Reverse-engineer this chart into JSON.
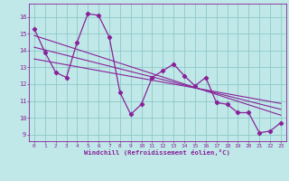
{
  "xlabel": "Windchill (Refroidissement éolien,°C)",
  "background_color": "#c0e8e8",
  "grid_color": "#90c8c8",
  "line_color": "#882299",
  "xlim": [
    -0.5,
    23.5
  ],
  "ylim": [
    8.6,
    16.8
  ],
  "yticks": [
    9,
    10,
    11,
    12,
    13,
    14,
    15,
    16
  ],
  "xticks": [
    0,
    1,
    2,
    3,
    4,
    5,
    6,
    7,
    8,
    9,
    10,
    11,
    12,
    13,
    14,
    15,
    16,
    17,
    18,
    19,
    20,
    21,
    22,
    23
  ],
  "main_x": [
    0,
    1,
    2,
    3,
    4,
    5,
    6,
    7,
    8,
    9,
    10,
    11,
    12,
    13,
    14,
    15,
    16,
    17,
    18,
    19,
    20,
    21,
    22,
    23
  ],
  "main_y": [
    15.3,
    13.9,
    12.7,
    12.4,
    14.5,
    16.2,
    16.1,
    14.8,
    11.5,
    10.2,
    10.8,
    12.4,
    12.8,
    13.2,
    12.5,
    11.9,
    12.4,
    10.9,
    10.8,
    10.3,
    10.3,
    9.1,
    9.2,
    9.7
  ],
  "trend_lines": [
    {
      "x": [
        0,
        23
      ],
      "y": [
        14.9,
        10.15
      ]
    },
    {
      "x": [
        0,
        23
      ],
      "y": [
        14.2,
        10.5
      ]
    },
    {
      "x": [
        0,
        23
      ],
      "y": [
        13.5,
        10.85
      ]
    }
  ]
}
